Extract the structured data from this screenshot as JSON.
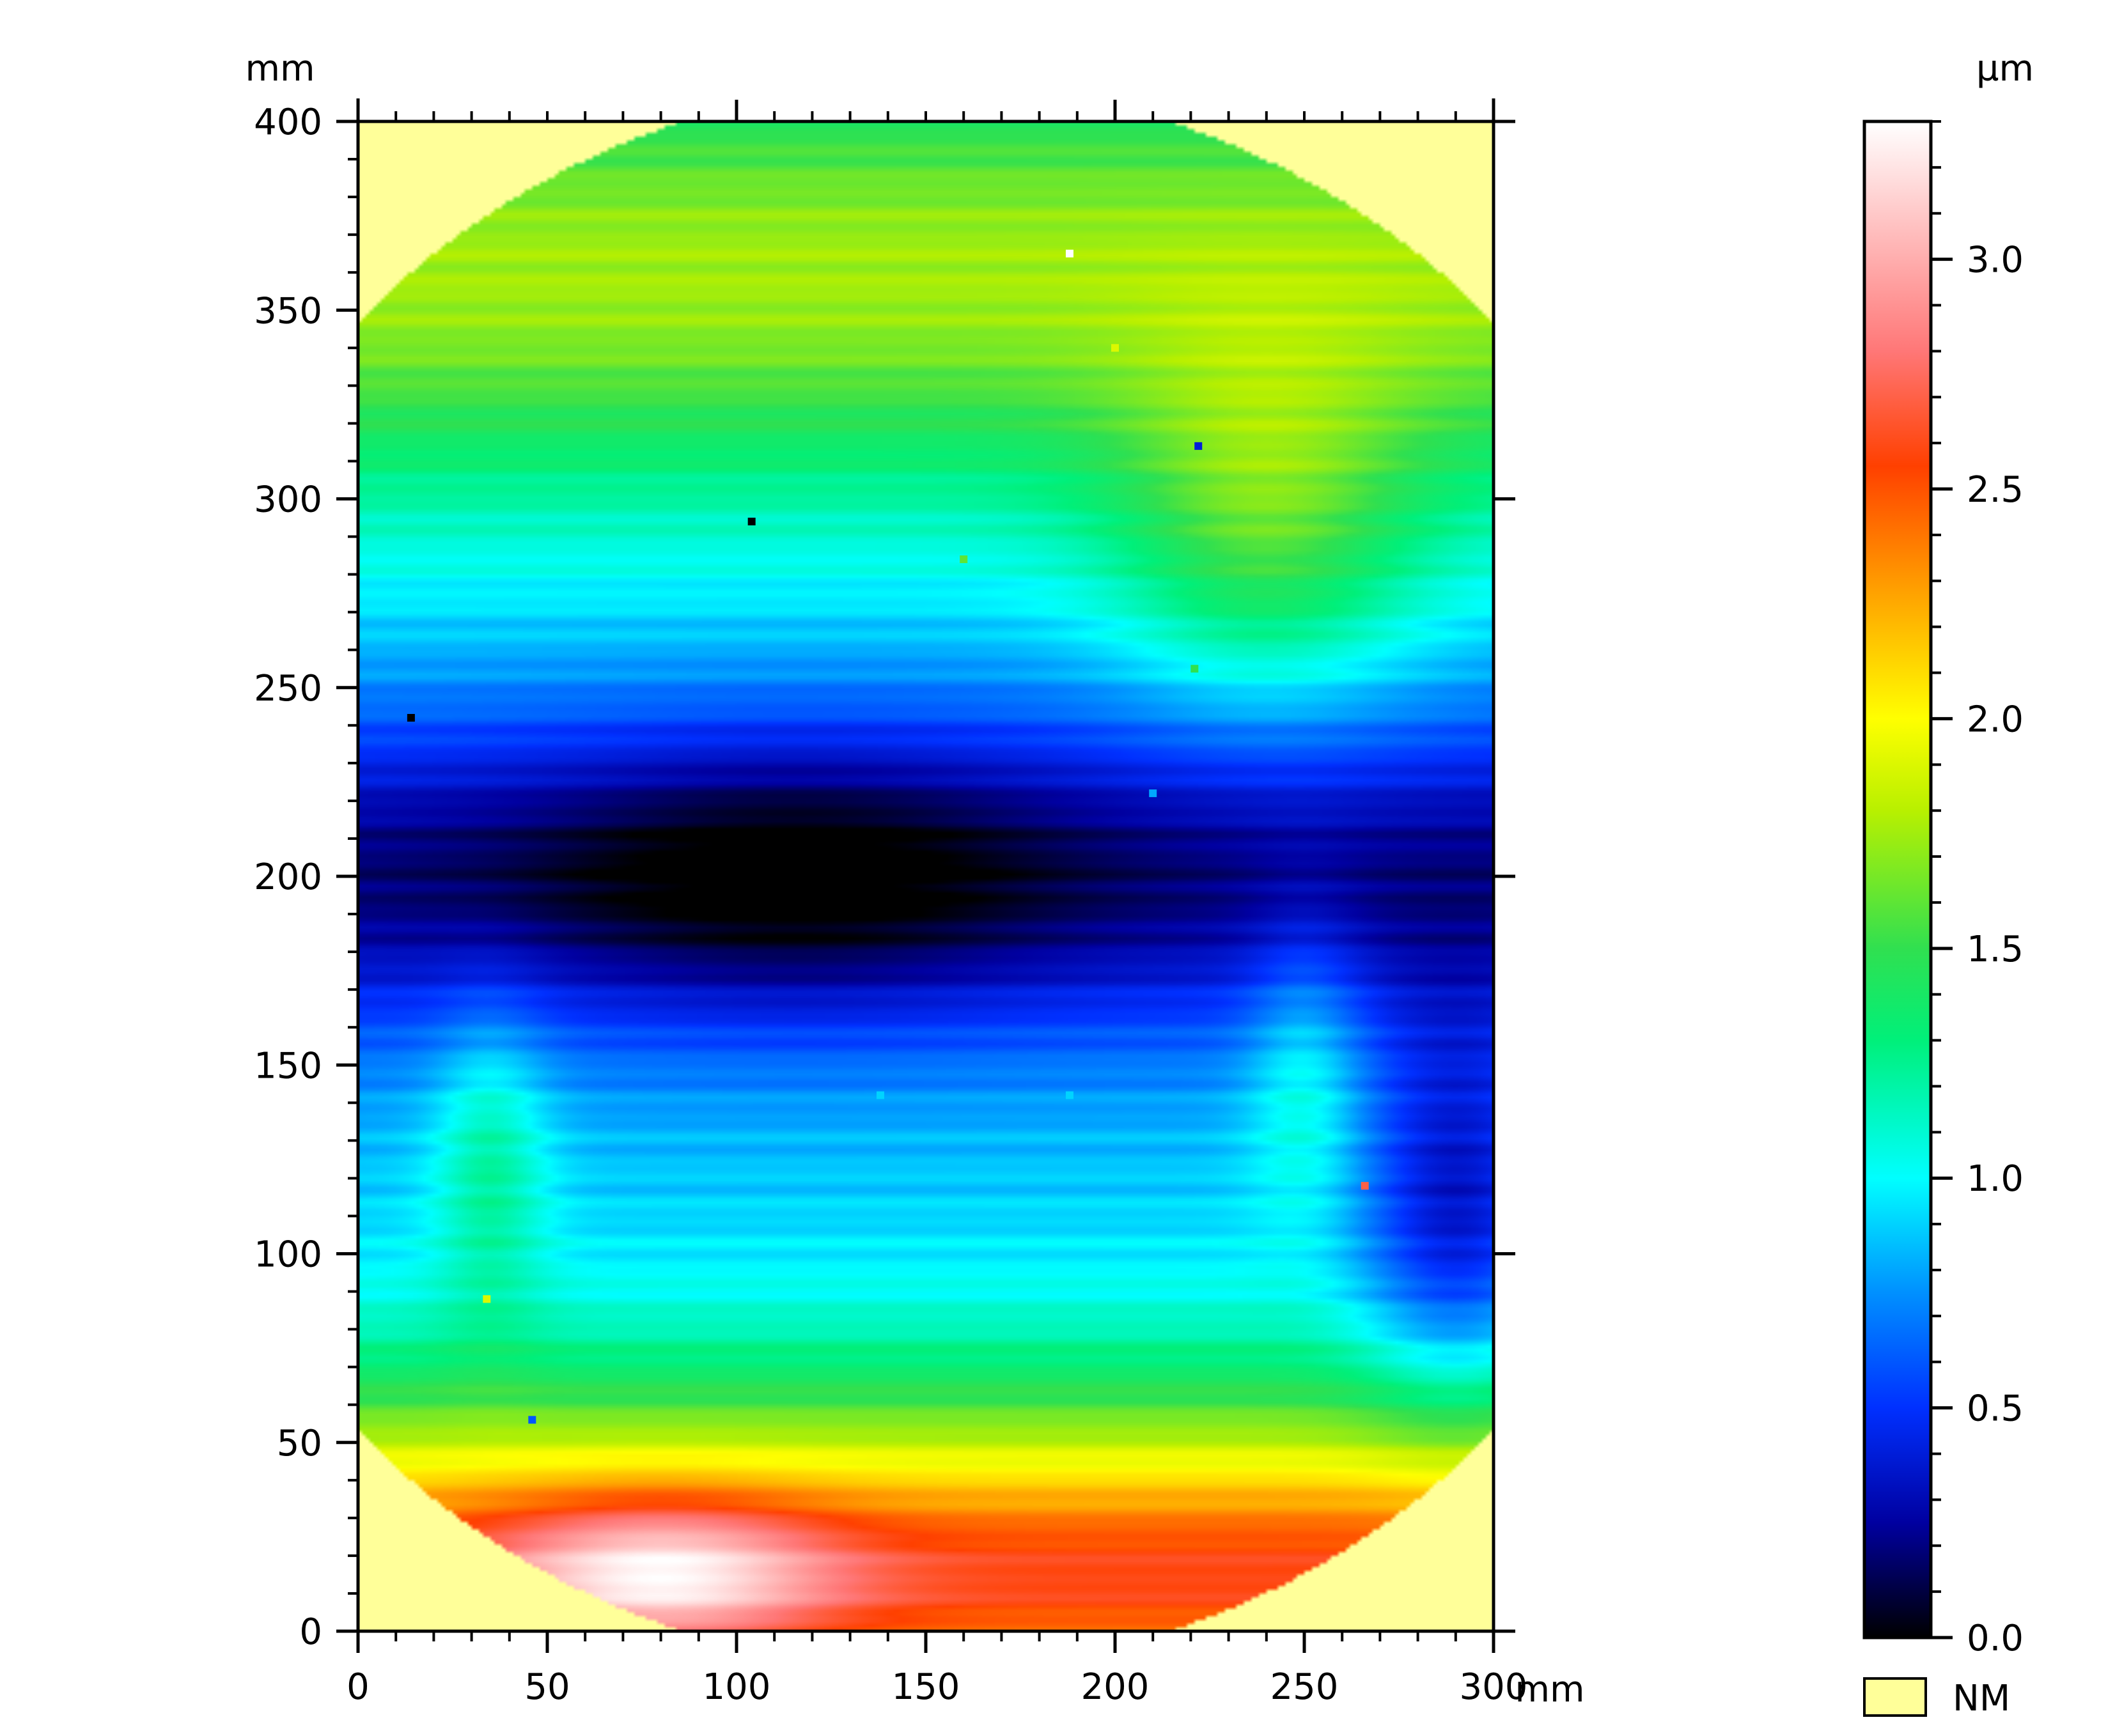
{
  "chart_data": {
    "type": "heatmap",
    "x_unit": "mm",
    "y_unit": "mm",
    "xlim": [
      0,
      300
    ],
    "ylim": [
      0,
      400
    ],
    "x_ticks": [
      "0",
      "50",
      "100",
      "150",
      "200",
      "250",
      "300"
    ],
    "y_ticks": [
      "0",
      "50",
      "100",
      "150",
      "200",
      "250",
      "300",
      "350",
      "400"
    ],
    "colorbar": {
      "unit": "µm",
      "range": [
        0.0,
        3.3
      ],
      "ticks": [
        "0.0",
        "0.5",
        "1.0",
        "1.5",
        "2.0",
        "2.5",
        "3.0"
      ],
      "stops": [
        {
          "value": 0.0,
          "color": "#000000"
        },
        {
          "value": 0.25,
          "color": "#0000a0"
        },
        {
          "value": 0.5,
          "color": "#0030ff"
        },
        {
          "value": 0.75,
          "color": "#0090ff"
        },
        {
          "value": 1.0,
          "color": "#00ffff"
        },
        {
          "value": 1.3,
          "color": "#00f07a"
        },
        {
          "value": 1.5,
          "color": "#30e050"
        },
        {
          "value": 1.8,
          "color": "#b8f000"
        },
        {
          "value": 2.0,
          "color": "#ffff00"
        },
        {
          "value": 2.3,
          "color": "#ff9900"
        },
        {
          "value": 2.55,
          "color": "#ff4000"
        },
        {
          "value": 2.8,
          "color": "#ff7777"
        },
        {
          "value": 3.3,
          "color": "#ffffff"
        }
      ]
    },
    "nm_legend": {
      "label": "NM",
      "color": "#ffff99"
    },
    "wafer": {
      "center_x": 150,
      "center_y": 200,
      "radius": 210
    },
    "field_model": {
      "base": 0.9,
      "terms": [
        {
          "type": "gauss_y",
          "center": 200,
          "width": 45,
          "amp": -0.7
        },
        {
          "type": "gauss_xy",
          "cx": 115,
          "cy": 200,
          "wx": 70,
          "wy": 35,
          "amp": -0.3
        },
        {
          "type": "gauss_y",
          "center": 360,
          "width": 60,
          "amp": 0.85
        },
        {
          "type": "gauss_y",
          "center": 10,
          "width": 35,
          "amp": 1.55
        },
        {
          "type": "gauss_y",
          "center": 50,
          "width": 35,
          "amp": 0.5
        },
        {
          "type": "gauss_xy",
          "cx": 240,
          "cy": 290,
          "wx": 40,
          "wy": 45,
          "amp": 0.5
        },
        {
          "type": "gauss_xy",
          "cx": 290,
          "cy": 110,
          "wx": 25,
          "wy": 50,
          "amp": -0.55
        },
        {
          "type": "gauss_xy",
          "cx": 250,
          "cy": 150,
          "wx": 15,
          "wy": 40,
          "amp": 0.3
        },
        {
          "type": "gauss_xy",
          "cx": 35,
          "cy": 125,
          "wx": 15,
          "wy": 40,
          "amp": 0.35
        },
        {
          "type": "gauss_xy",
          "cx": 80,
          "cy": 15,
          "wx": 45,
          "wy": 20,
          "amp": 0.7
        }
      ]
    },
    "outlier_points": [
      {
        "x": 14,
        "y": 242,
        "value": 0.0
      },
      {
        "x": 104,
        "y": 294,
        "value": 0.0
      },
      {
        "x": 188,
        "y": 365,
        "value": 3.3
      },
      {
        "x": 222,
        "y": 314,
        "value": 0.4
      },
      {
        "x": 266,
        "y": 118,
        "value": 2.7
      },
      {
        "x": 46,
        "y": 56,
        "value": 0.6
      },
      {
        "x": 34,
        "y": 88,
        "value": 1.9
      },
      {
        "x": 160,
        "y": 284,
        "value": 1.6
      },
      {
        "x": 200,
        "y": 340,
        "value": 1.9
      },
      {
        "x": 221,
        "y": 255,
        "value": 1.5
      },
      {
        "x": 210,
        "y": 222,
        "value": 0.8
      },
      {
        "x": 138,
        "y": 142,
        "value": 0.9
      },
      {
        "x": 188,
        "y": 142,
        "value": 0.9
      }
    ]
  }
}
